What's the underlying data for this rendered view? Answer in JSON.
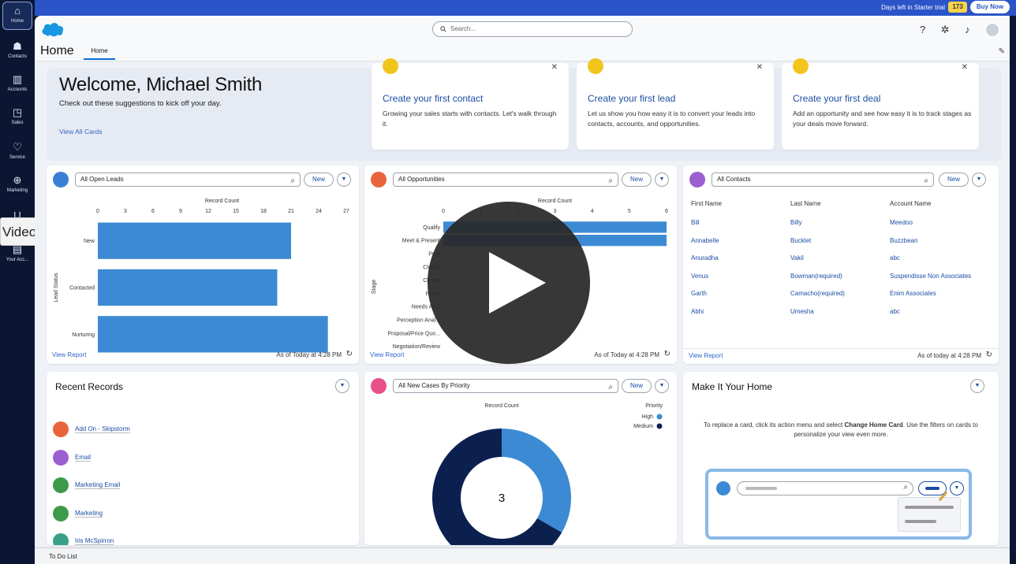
{
  "nav": {
    "items": [
      {
        "label": "Home",
        "icon": "home-icon"
      },
      {
        "label": "Contacts",
        "icon": "contacts-icon"
      },
      {
        "label": "Accounts",
        "icon": "accounts-icon"
      },
      {
        "label": "Sales",
        "icon": "sales-icon"
      },
      {
        "label": "Service",
        "icon": "service-icon"
      },
      {
        "label": "Marketing",
        "icon": "marketing-icon"
      },
      {
        "label": "",
        "icon": "cart-icon"
      },
      {
        "label": "Your Acc...",
        "icon": "your-account-icon"
      }
    ],
    "tooltip": "Video"
  },
  "banner": {
    "days_text": "Days left in Starter trial",
    "days_value": "173",
    "buy_label": "Buy Now"
  },
  "header": {
    "search_placeholder": "Search...",
    "page_title": "Home",
    "tab_label": "Home",
    "help_symbol": "?"
  },
  "welcome": {
    "title": "Welcome, Michael Smith",
    "subtitle": "Check out these suggestions to kick off your day.",
    "view_all": "View All Cards",
    "cards": [
      {
        "title": "Create your first contact",
        "text": "Growing your sales starts with contacts. Let's walk through it."
      },
      {
        "title": "Create your first lead",
        "text": "Let us show you how easy it is to convert your leads into contacts, accounts, and opportunities."
      },
      {
        "title": "Create your first deal",
        "text": "Add an opportunity and see how easy it is to track stages as your deals move forward."
      }
    ]
  },
  "leads": {
    "list_view": "All Open Leads",
    "new_label": "New",
    "view_report": "View Report",
    "as_of": "As of Today at 4:28 PM"
  },
  "opps": {
    "list_view": "All Opportunities",
    "new_label": "New",
    "view_report": "View Report",
    "as_of": "As of Today at 4:28 PM"
  },
  "contacts": {
    "list_view": "All Contacts",
    "new_label": "New",
    "view_report": "View Report",
    "as_of": "As of today at 4:28 PM",
    "columns": [
      "First Name",
      "Last Name",
      "Account Name"
    ],
    "rows": [
      [
        "Bill",
        "Billy",
        "Meedoo"
      ],
      [
        "Annabelle",
        "Bucklet",
        "Buzzbean"
      ],
      [
        "Anuradha",
        "Vakil",
        "abc"
      ],
      [
        "Venus",
        "Bowman(required)",
        "Suspendisse Non Associates"
      ],
      [
        "Garth",
        "Camacho(required)",
        "Enim Associates"
      ],
      [
        "Abhi",
        "Umesha",
        "abc"
      ]
    ]
  },
  "recent": {
    "title": "Recent Records",
    "items": [
      {
        "label": "Add On - Skipstorm",
        "color": "#e8643c"
      },
      {
        "label": "Email",
        "color": "#9a5fd1"
      },
      {
        "label": "Marketing Email",
        "color": "#3d9a4a"
      },
      {
        "label": "Marketing",
        "color": "#3d9a4a"
      },
      {
        "label": "Iris McSpirron",
        "color": "#3aa08a"
      }
    ]
  },
  "cases": {
    "list_view": "All New Cases By Priority",
    "new_label": "New"
  },
  "make_home": {
    "title": "Make It Your Home",
    "text_before": "To replace a card, click its action menu and select",
    "text_bold": "Change Home Card",
    "text_after": ". Use the filters on cards to personalize your view even more."
  },
  "todo": {
    "label": "To Do List"
  },
  "chart_data": [
    {
      "type": "bar",
      "orientation": "horizontal",
      "title": "Record Count",
      "ylabel": "Lead Status",
      "categories": [
        "New",
        "Contacted",
        "Nurturing"
      ],
      "values": [
        21,
        19.5,
        25
      ],
      "xlim": [
        0,
        27
      ],
      "ticks": [
        0,
        3,
        6,
        9,
        12,
        15,
        18,
        21,
        24,
        27
      ]
    },
    {
      "type": "bar",
      "orientation": "horizontal",
      "title": "Record Count",
      "ylabel": "Stage",
      "categories": [
        "Qualify",
        "Meet & Present",
        "Prop",
        "Closed",
        "Closed",
        "Prosp",
        "Needs An...",
        "Perception Anal...",
        "Proposal/Price Quo...",
        "Negotiation/Review"
      ],
      "values": [
        6,
        6,
        0,
        0,
        0,
        0,
        0,
        0,
        0,
        0
      ],
      "xlim": [
        0,
        6
      ],
      "ticks": [
        0,
        1,
        2,
        3,
        4,
        5,
        6
      ]
    },
    {
      "type": "pie",
      "donut": true,
      "title": "Record Count",
      "legend_title": "Priority",
      "center_label": "3",
      "slices": [
        {
          "name": "High",
          "value": 1,
          "color": "#3c8ad3"
        },
        {
          "name": "Medium",
          "value": 2,
          "color": "#0c2050"
        }
      ]
    }
  ]
}
